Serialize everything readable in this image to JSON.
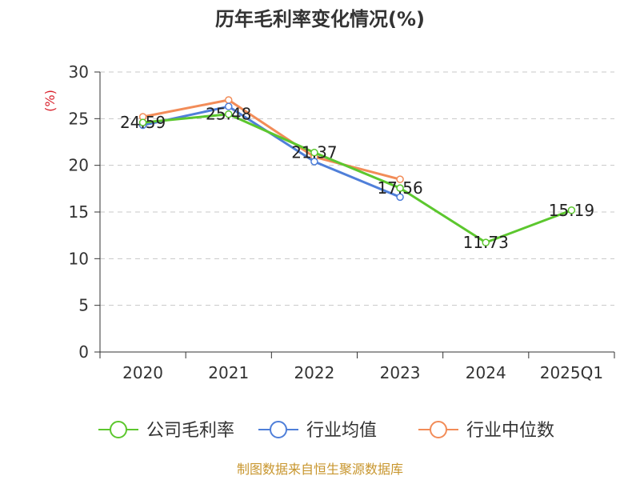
{
  "chart_data": {
    "type": "line",
    "title": "历年毛利率变化情况(%)",
    "ylabel": "(%)",
    "xlabel": "",
    "categories": [
      "2020",
      "2021",
      "2022",
      "2023",
      "2024",
      "2025Q1"
    ],
    "ylim": [
      0,
      30
    ],
    "yticks": [
      0,
      5,
      10,
      15,
      20,
      25,
      30
    ],
    "grid": true,
    "legend_position": "bottom",
    "series": [
      {
        "name": "公司毛利率",
        "color": "#5cc72e",
        "values": [
          24.59,
          25.48,
          21.37,
          17.56,
          11.73,
          15.19
        ],
        "labels": [
          "24.59",
          "25.48",
          "21.37",
          "17.56",
          "11.73",
          "15.19"
        ]
      },
      {
        "name": "行业均值",
        "color": "#4f7fd9",
        "values": [
          24.3,
          26.3,
          20.4,
          16.6,
          null,
          null
        ]
      },
      {
        "name": "行业中位数",
        "color": "#f28c58",
        "values": [
          25.2,
          27.0,
          20.9,
          18.5,
          null,
          null
        ]
      }
    ]
  },
  "source": "制图数据来自恒生聚源数据库",
  "colors": {
    "source": "#c8962e",
    "ylabel": "#d9232e",
    "grid": "#c8c8c8",
    "axis": "#333333"
  }
}
